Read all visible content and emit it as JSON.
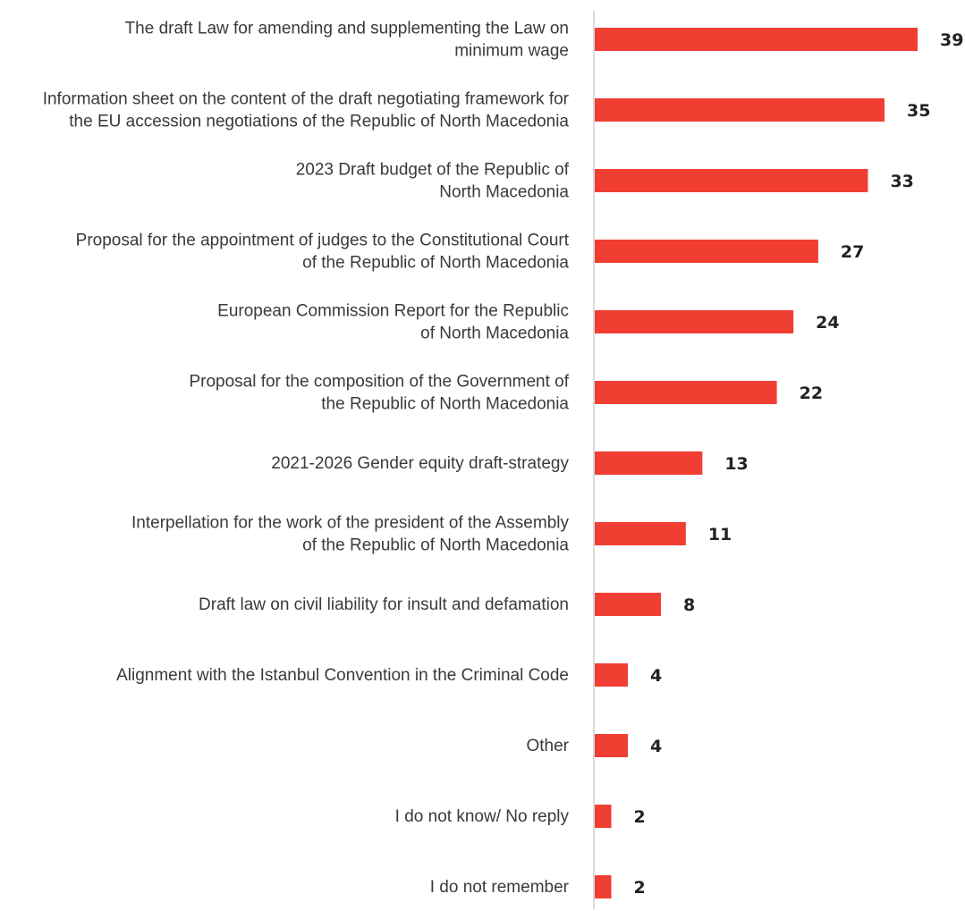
{
  "chart_data": {
    "type": "bar",
    "orientation": "horizontal",
    "categories": [
      [
        "The draft Law for amending and supplementing the Law on",
        "minimum wage"
      ],
      [
        "Information sheet on the content of the draft negotiating framework for",
        "the EU accession negotiations of the Republic of North Macedonia"
      ],
      [
        "2023 Draft budget of the Republic of",
        "North Macedonia"
      ],
      [
        "Proposal for the appointment of judges to the Constitutional Court",
        "of the Republic of North Macedonia"
      ],
      [
        "European Commission Report for the Republic",
        "of North Macedonia"
      ],
      [
        "Proposal for the composition of the Government of",
        "the Republic of North Macedonia"
      ],
      [
        "2021-2026 Gender equity draft-strategy"
      ],
      [
        "Interpellation for the work of the president of the Assembly",
        "of the Republic of North Macedonia"
      ],
      [
        "Draft law on civil liability for insult and defamation"
      ],
      [
        "Alignment with the Istanbul Convention in the Criminal Code"
      ],
      [
        "Other"
      ],
      [
        "I do not know/ No reply"
      ],
      [
        "I do not remember"
      ]
    ],
    "values": [
      39,
      35,
      33,
      27,
      24,
      22,
      13,
      11,
      8,
      4,
      4,
      2,
      2
    ],
    "xlim": [
      0,
      39
    ],
    "bar_color": "#f03e32",
    "axis_color": "#b5b5b5",
    "grid": false,
    "legend": "none",
    "title": "",
    "xlabel": "",
    "ylabel": ""
  }
}
